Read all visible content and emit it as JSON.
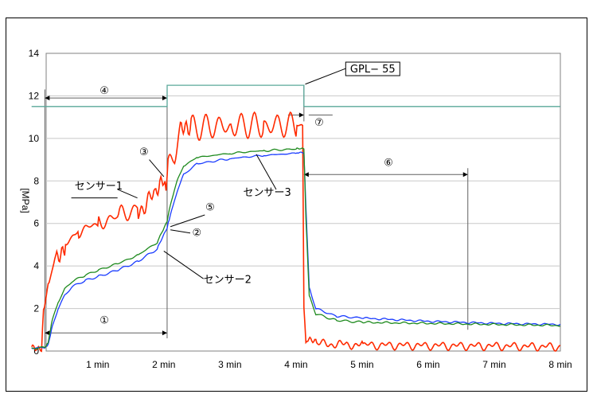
{
  "chart_data": {
    "type": "line",
    "ylim": [
      0,
      14
    ],
    "xlim": [
      0,
      8
    ],
    "y_ticks": [
      "0",
      "2",
      "4",
      "6",
      "8",
      "10",
      "12",
      "14"
    ],
    "x_ticks": [
      {
        "x": 1,
        "label": "1 min"
      },
      {
        "x": 2,
        "label": "2 min"
      },
      {
        "x": 3,
        "label": "3 min"
      },
      {
        "x": 4,
        "label": "4 min"
      },
      {
        "x": 5,
        "label": "5 min"
      },
      {
        "x": 6,
        "label": "6 min"
      },
      {
        "x": 7,
        "label": "7 min"
      },
      {
        "x": 8,
        "label": "8 min"
      }
    ],
    "ylabel": "[MPa]",
    "grid": "horizontal",
    "series": [
      {
        "name": "センサー1",
        "color": "#ff2a00",
        "x": [
          0,
          0.15,
          0.18,
          0.25,
          0.35,
          0.5,
          0.7,
          1.0,
          1.3,
          1.6,
          1.85,
          2.0,
          2.05,
          2.15,
          2.25,
          2.4,
          3.0,
          3.5,
          4.0,
          4.1,
          4.12,
          4.15,
          4.3,
          5,
          6,
          7,
          8
        ],
        "y": [
          0.2,
          0.2,
          1.8,
          3.0,
          4.3,
          5.1,
          5.6,
          6.0,
          6.3,
          6.7,
          7.2,
          7.8,
          8.3,
          9.3,
          10.2,
          10.5,
          10.6,
          10.62,
          10.62,
          10.6,
          2.0,
          0.5,
          0.35,
          0.28,
          0.25,
          0.23,
          0.2
        ]
      },
      {
        "name": "センサー2",
        "color": "#1a3cff",
        "x": [
          0,
          0.2,
          0.25,
          0.3,
          0.4,
          0.5,
          0.6,
          0.8,
          1.0,
          1.3,
          1.6,
          1.9,
          2.05,
          2.1,
          2.2,
          2.3,
          2.5,
          3.0,
          3.5,
          4.0,
          4.12,
          4.15,
          4.2,
          4.3,
          4.6,
          5,
          6,
          7,
          8
        ],
        "y": [
          0.15,
          0.15,
          0.3,
          1.0,
          2.0,
          2.6,
          3.0,
          3.3,
          3.5,
          3.8,
          4.2,
          4.8,
          5.8,
          6.4,
          7.5,
          8.3,
          8.8,
          9.05,
          9.2,
          9.3,
          9.32,
          6.8,
          3.0,
          2.0,
          1.65,
          1.55,
          1.4,
          1.3,
          1.25
        ]
      },
      {
        "name": "センサー3",
        "color": "#1e8a1e",
        "x": [
          0,
          0.2,
          0.25,
          0.3,
          0.4,
          0.5,
          0.6,
          0.8,
          1.0,
          1.3,
          1.6,
          1.9,
          2.05,
          2.1,
          2.2,
          2.3,
          2.5,
          3.0,
          3.5,
          4.0,
          4.12,
          4.15,
          4.2,
          4.3,
          4.6,
          5,
          6,
          7,
          8
        ],
        "y": [
          0.15,
          0.15,
          0.4,
          1.3,
          2.3,
          2.9,
          3.25,
          3.55,
          3.8,
          4.1,
          4.5,
          5.1,
          6.1,
          6.9,
          8.0,
          8.7,
          9.1,
          9.3,
          9.42,
          9.5,
          9.5,
          6.3,
          2.6,
          1.75,
          1.45,
          1.35,
          1.3,
          1.25,
          1.2
        ]
      },
      {
        "name": "GPL-55",
        "color": "#5aa89a",
        "x": [
          0,
          2.05,
          2.05,
          4.12,
          4.12,
          8.0
        ],
        "y": [
          11.5,
          11.5,
          12.5,
          12.5,
          11.5,
          11.5
        ]
      }
    ],
    "annotations": [
      {
        "label": "①",
        "x": 1.1,
        "y": 1.3
      },
      {
        "label": "②",
        "x": 2.5,
        "y": 5.4
      },
      {
        "label": "③",
        "x": 1.7,
        "y": 9.2
      },
      {
        "label": "④",
        "x": 1.1,
        "y": 12.1
      },
      {
        "label": "⑤",
        "x": 2.7,
        "y": 6.6
      },
      {
        "label": "⑥",
        "x": 5.4,
        "y": 8.7
      },
      {
        "label": "⑦",
        "x": 4.35,
        "y": 10.6
      }
    ],
    "series_labels": [
      {
        "label": "センサー1",
        "x": 0.65,
        "y": 7.6
      },
      {
        "label": "センサー2",
        "x": 2.6,
        "y": 3.2
      },
      {
        "label": "センサー3",
        "x": 3.2,
        "y": 7.3
      },
      {
        "label": "GPL− 55",
        "x": 4.8,
        "y": 13.1
      }
    ]
  }
}
